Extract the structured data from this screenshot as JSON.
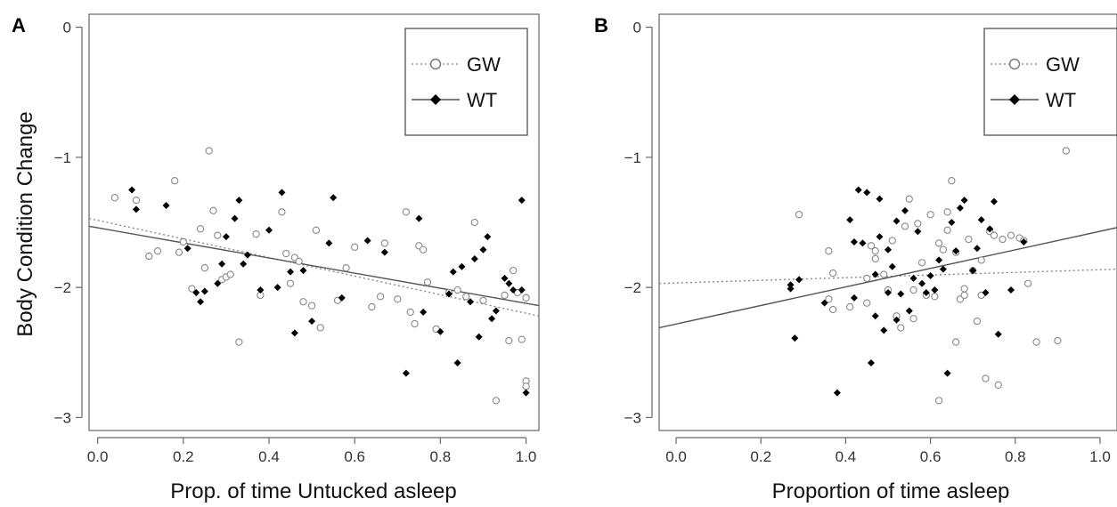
{
  "figure": {
    "ylabel": "Body Condition Change",
    "legend": [
      {
        "label": "GW",
        "marker": "open-circle",
        "line": "dotted"
      },
      {
        "label": "WT",
        "marker": "filled-diamond",
        "line": "solid"
      }
    ]
  },
  "chart_data": [
    {
      "type": "scatter",
      "panel_label": "A",
      "title": "",
      "xlabel": "Prop. of time Untucked asleep",
      "ylabel": "Body Condition Change",
      "xlim": [
        -0.02,
        1.03
      ],
      "ylim": [
        -3.1,
        0.1
      ],
      "xticks": [
        "0.0",
        "0.2",
        "0.4",
        "0.6",
        "0.8",
        "1.0"
      ],
      "yticks": [
        "0",
        "−1",
        "−2",
        "−3"
      ],
      "grid": false,
      "legend_position": "top-right",
      "colors": {
        "GW": "#888888",
        "WT": "#000000"
      },
      "series": [
        {
          "name": "GW",
          "marker": "open-circle",
          "x": [
            0.04,
            0.09,
            0.12,
            0.14,
            0.18,
            0.19,
            0.2,
            0.22,
            0.24,
            0.25,
            0.26,
            0.27,
            0.28,
            0.29,
            0.3,
            0.31,
            0.33,
            0.37,
            0.38,
            0.43,
            0.44,
            0.45,
            0.46,
            0.47,
            0.48,
            0.5,
            0.51,
            0.52,
            0.56,
            0.58,
            0.6,
            0.64,
            0.66,
            0.67,
            0.7,
            0.72,
            0.73,
            0.74,
            0.75,
            0.76,
            0.77,
            0.79,
            0.82,
            0.84,
            0.86,
            0.88,
            0.9,
            0.93,
            0.95,
            0.96,
            0.97,
            0.98,
            0.99,
            1.0,
            1.0,
            1.0,
            1.0
          ],
          "y": [
            -1.31,
            -1.33,
            -1.76,
            -1.72,
            -1.18,
            -1.73,
            -1.65,
            -2.01,
            -1.55,
            -1.85,
            -0.95,
            -1.41,
            -1.6,
            -1.94,
            -1.92,
            -1.9,
            -2.42,
            -1.59,
            -2.06,
            -1.42,
            -1.74,
            -1.97,
            -1.77,
            -1.8,
            -2.11,
            -2.14,
            -1.56,
            -2.31,
            -2.1,
            -1.85,
            -1.69,
            -2.15,
            -2.07,
            -1.66,
            -2.09,
            -1.42,
            -2.19,
            -2.28,
            -1.68,
            -1.71,
            -1.96,
            -2.32,
            -2.04,
            -2.02,
            -2.07,
            -1.5,
            -2.1,
            -2.87,
            -2.06,
            -2.41,
            -1.87,
            -2.04,
            -2.4,
            -2.08,
            -2.72,
            -2.76,
            -2.08
          ]
        },
        {
          "name": "WT",
          "marker": "filled-diamond",
          "x": [
            0.08,
            0.09,
            0.16,
            0.21,
            0.23,
            0.24,
            0.25,
            0.28,
            0.29,
            0.3,
            0.32,
            0.33,
            0.34,
            0.35,
            0.38,
            0.4,
            0.42,
            0.43,
            0.45,
            0.46,
            0.48,
            0.5,
            0.54,
            0.55,
            0.57,
            0.63,
            0.67,
            0.72,
            0.75,
            0.76,
            0.8,
            0.82,
            0.83,
            0.84,
            0.85,
            0.87,
            0.88,
            0.89,
            0.9,
            0.91,
            0.92,
            0.93,
            0.95,
            0.96,
            0.97,
            0.99,
            0.99,
            1.0
          ],
          "y": [
            -1.25,
            -1.4,
            -1.37,
            -1.7,
            -2.04,
            -2.11,
            -2.03,
            -1.97,
            -1.82,
            -1.61,
            -1.47,
            -1.33,
            -1.82,
            -1.75,
            -2.02,
            -1.56,
            -2.0,
            -1.27,
            -1.88,
            -2.35,
            -1.87,
            -2.26,
            -1.66,
            -1.31,
            -2.08,
            -1.64,
            -1.73,
            -2.66,
            -1.47,
            -2.19,
            -2.34,
            -2.05,
            -1.88,
            -2.58,
            -1.84,
            -2.11,
            -1.78,
            -2.38,
            -1.71,
            -1.61,
            -2.24,
            -2.18,
            -1.93,
            -1.97,
            -2.02,
            -1.33,
            -2.02,
            -2.81
          ]
        }
      ],
      "trendlines": [
        {
          "name": "GW",
          "style": "dotted",
          "x": [
            -0.02,
            1.03
          ],
          "y": [
            -1.47,
            -2.22
          ]
        },
        {
          "name": "WT",
          "style": "solid",
          "x": [
            -0.02,
            1.03
          ],
          "y": [
            -1.53,
            -2.14
          ]
        }
      ]
    },
    {
      "type": "scatter",
      "panel_label": "B",
      "title": "",
      "xlabel": "Proportion of time asleep",
      "ylabel": "",
      "xlim": [
        -0.04,
        1.04
      ],
      "ylim": [
        -3.1,
        0.1
      ],
      "xticks": [
        "0.0",
        "0.2",
        "0.4",
        "0.6",
        "0.8",
        "1.0"
      ],
      "yticks": [
        "0",
        "−1",
        "−2",
        "−3"
      ],
      "grid": false,
      "legend_position": "top-right",
      "colors": {
        "GW": "#888888",
        "WT": "#000000"
      },
      "series": [
        {
          "name": "GW",
          "marker": "open-circle",
          "x": [
            0.29,
            0.36,
            0.36,
            0.37,
            0.37,
            0.41,
            0.45,
            0.45,
            0.46,
            0.47,
            0.47,
            0.49,
            0.5,
            0.51,
            0.52,
            0.53,
            0.54,
            0.55,
            0.56,
            0.56,
            0.57,
            0.58,
            0.59,
            0.6,
            0.61,
            0.62,
            0.62,
            0.63,
            0.64,
            0.64,
            0.65,
            0.66,
            0.66,
            0.67,
            0.68,
            0.68,
            0.69,
            0.7,
            0.71,
            0.72,
            0.72,
            0.73,
            0.74,
            0.75,
            0.76,
            0.77,
            0.79,
            0.81,
            0.82,
            0.83,
            0.85,
            0.9,
            0.92
          ],
          "y": [
            -1.44,
            -1.72,
            -2.09,
            -2.17,
            -1.89,
            -2.15,
            -1.93,
            -2.12,
            -1.68,
            -1.78,
            -1.72,
            -1.9,
            -2.02,
            -1.64,
            -2.22,
            -2.31,
            -1.53,
            -1.32,
            -2.02,
            -2.24,
            -1.51,
            -1.81,
            -2.06,
            -1.44,
            -2.07,
            -1.66,
            -2.87,
            -1.71,
            -1.42,
            -1.56,
            -1.18,
            -1.73,
            -2.42,
            -2.09,
            -2.06,
            -2.01,
            -1.63,
            -1.87,
            -2.26,
            -1.79,
            -2.06,
            -2.7,
            -1.57,
            -1.6,
            -2.75,
            -1.63,
            -1.6,
            -1.62,
            -1.64,
            -1.97,
            -2.42,
            -2.41,
            -0.95
          ]
        },
        {
          "name": "WT",
          "marker": "filled-diamond",
          "x": [
            0.27,
            0.27,
            0.28,
            0.29,
            0.35,
            0.38,
            0.41,
            0.42,
            0.42,
            0.43,
            0.44,
            0.45,
            0.46,
            0.47,
            0.47,
            0.48,
            0.48,
            0.49,
            0.5,
            0.5,
            0.51,
            0.52,
            0.52,
            0.53,
            0.54,
            0.55,
            0.56,
            0.57,
            0.58,
            0.59,
            0.6,
            0.61,
            0.62,
            0.63,
            0.64,
            0.65,
            0.66,
            0.67,
            0.68,
            0.7,
            0.71,
            0.72,
            0.73,
            0.74,
            0.75,
            0.76,
            0.79,
            0.82
          ],
          "y": [
            -1.98,
            -2.01,
            -2.39,
            -1.94,
            -2.12,
            -2.81,
            -1.48,
            -2.08,
            -1.65,
            -1.25,
            -1.66,
            -1.27,
            -2.58,
            -2.22,
            -1.9,
            -1.32,
            -1.61,
            -2.33,
            -2.04,
            -1.71,
            -1.84,
            -1.49,
            -2.25,
            -2.05,
            -1.41,
            -2.18,
            -1.93,
            -1.57,
            -1.97,
            -2.04,
            -1.91,
            -2.02,
            -1.79,
            -1.86,
            -2.66,
            -1.5,
            -1.72,
            -1.39,
            -1.33,
            -1.87,
            -1.7,
            -1.48,
            -2.04,
            -1.55,
            -1.34,
            -2.36,
            -2.02,
            -1.65
          ]
        }
      ],
      "trendlines": [
        {
          "name": "GW",
          "style": "dotted",
          "x": [
            -0.04,
            1.04
          ],
          "y": [
            -1.97,
            -1.86
          ]
        },
        {
          "name": "WT",
          "style": "solid",
          "x": [
            -0.04,
            1.04
          ],
          "y": [
            -2.31,
            -1.54
          ]
        }
      ]
    }
  ]
}
